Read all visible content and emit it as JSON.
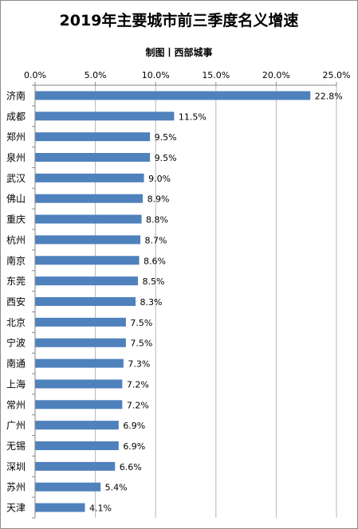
{
  "chart_data": {
    "type": "bar",
    "orientation": "horizontal",
    "title": "2019年主要城市前三季度名义增速",
    "subtitle": "制图丨西部城事",
    "categories": [
      "济南",
      "成都",
      "郑州",
      "泉州",
      "武汉",
      "佛山",
      "重庆",
      "杭州",
      "南京",
      "东莞",
      "西安",
      "北京",
      "宁波",
      "南通",
      "上海",
      "常州",
      "广州",
      "无锡",
      "深圳",
      "苏州",
      "天津"
    ],
    "values": [
      22.8,
      11.5,
      9.5,
      9.5,
      9.0,
      8.9,
      8.8,
      8.7,
      8.6,
      8.5,
      8.3,
      7.5,
      7.5,
      7.3,
      7.2,
      7.2,
      6.9,
      6.9,
      6.6,
      5.4,
      4.1
    ],
    "value_labels": [
      "22.8%",
      "11.5%",
      "9.5%",
      "9.5%",
      "9.0%",
      "8.9%",
      "8.8%",
      "8.7%",
      "8.6%",
      "8.5%",
      "8.3%",
      "7.5%",
      "7.5%",
      "7.3%",
      "7.2%",
      "7.2%",
      "6.9%",
      "6.9%",
      "6.6%",
      "5.4%",
      "4.1%"
    ],
    "xlim": [
      0,
      25
    ],
    "x_ticks": [
      0,
      5,
      10,
      15,
      20,
      25
    ],
    "x_tick_labels": [
      "0.0%",
      "5.0%",
      "10.0%",
      "15.0%",
      "20.0%",
      "25.0%"
    ],
    "x_axis_position": "top",
    "xlabel": "",
    "ylabel": "",
    "grid": "vertical",
    "legend": "none",
    "colors": {
      "bar": "#4f81bd",
      "grid": "#b7b7b7",
      "axis": "#868686",
      "text": "#000000"
    }
  }
}
